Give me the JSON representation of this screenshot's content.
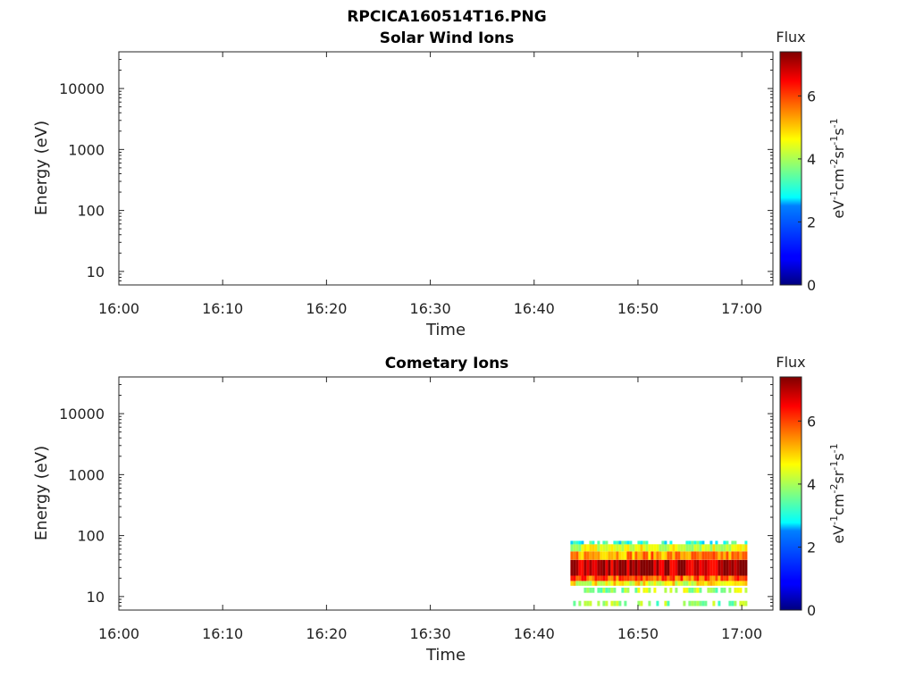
{
  "figure": {
    "title": "RPCICA160514T16.PNG"
  },
  "chart_data": [
    {
      "type": "heatmap",
      "title": "Solar Wind Ions",
      "xlabel": "Time",
      "ylabel": "Energy (eV)",
      "x_ticks": [
        "16:00",
        "16:10",
        "16:20",
        "16:30",
        "16:40",
        "16:50",
        "17:00"
      ],
      "xlim_minutes_after_1600": [
        0,
        63
      ],
      "y_scale": "log",
      "y_ticks": [
        "10",
        "100",
        "1000",
        "10000"
      ],
      "ylim": [
        6,
        40000
      ],
      "colorbar": {
        "label": "Flux",
        "units": "eV-1cm-2sr-1s-1",
        "ticks": [
          "0",
          "2",
          "4",
          "6"
        ],
        "range": [
          0,
          7.4
        ],
        "colormap": "jet"
      },
      "regions": []
    },
    {
      "type": "heatmap",
      "title": "Cometary Ions",
      "xlabel": "Time",
      "ylabel": "Energy (eV)",
      "x_ticks": [
        "16:00",
        "16:10",
        "16:20",
        "16:30",
        "16:40",
        "16:50",
        "17:00"
      ],
      "xlim_minutes_after_1600": [
        0,
        63
      ],
      "y_scale": "log",
      "y_ticks": [
        "10",
        "100",
        "1000",
        "10000"
      ],
      "ylim": [
        6,
        40000
      ],
      "colorbar": {
        "label": "Flux",
        "units": "eV-1cm-2sr-1s-1",
        "ticks": [
          "0",
          "2",
          "4",
          "6"
        ],
        "range": [
          0,
          7.4
        ],
        "colormap": "jet"
      },
      "regions": [
        {
          "t_start": 43.5,
          "t_end": 60.5,
          "e_low": 7,
          "e_high": 8.5,
          "flux": 3.8,
          "sparse": true
        },
        {
          "t_start": 43.5,
          "t_end": 60.5,
          "e_low": 11.5,
          "e_high": 14,
          "flux": 4.0,
          "sparse": true
        },
        {
          "t_start": 43.5,
          "t_end": 60.5,
          "e_low": 15,
          "e_high": 18,
          "flux": 4.6,
          "sparse": false
        },
        {
          "t_start": 43.5,
          "t_end": 60.5,
          "e_low": 18,
          "e_high": 22,
          "flux": 5.8,
          "sparse": false
        },
        {
          "t_start": 43.5,
          "t_end": 60.5,
          "e_low": 22,
          "e_high": 40,
          "flux": 7.0,
          "sparse": false
        },
        {
          "t_start": 43.5,
          "t_end": 60.5,
          "e_low": 40,
          "e_high": 55,
          "flux": 5.4,
          "sparse": false
        },
        {
          "t_start": 43.5,
          "t_end": 60.5,
          "e_low": 55,
          "e_high": 72,
          "flux": 4.4,
          "sparse": false
        },
        {
          "t_start": 43.5,
          "t_end": 60.5,
          "e_low": 72,
          "e_high": 82,
          "flux": 3.0,
          "sparse": true
        }
      ]
    }
  ]
}
